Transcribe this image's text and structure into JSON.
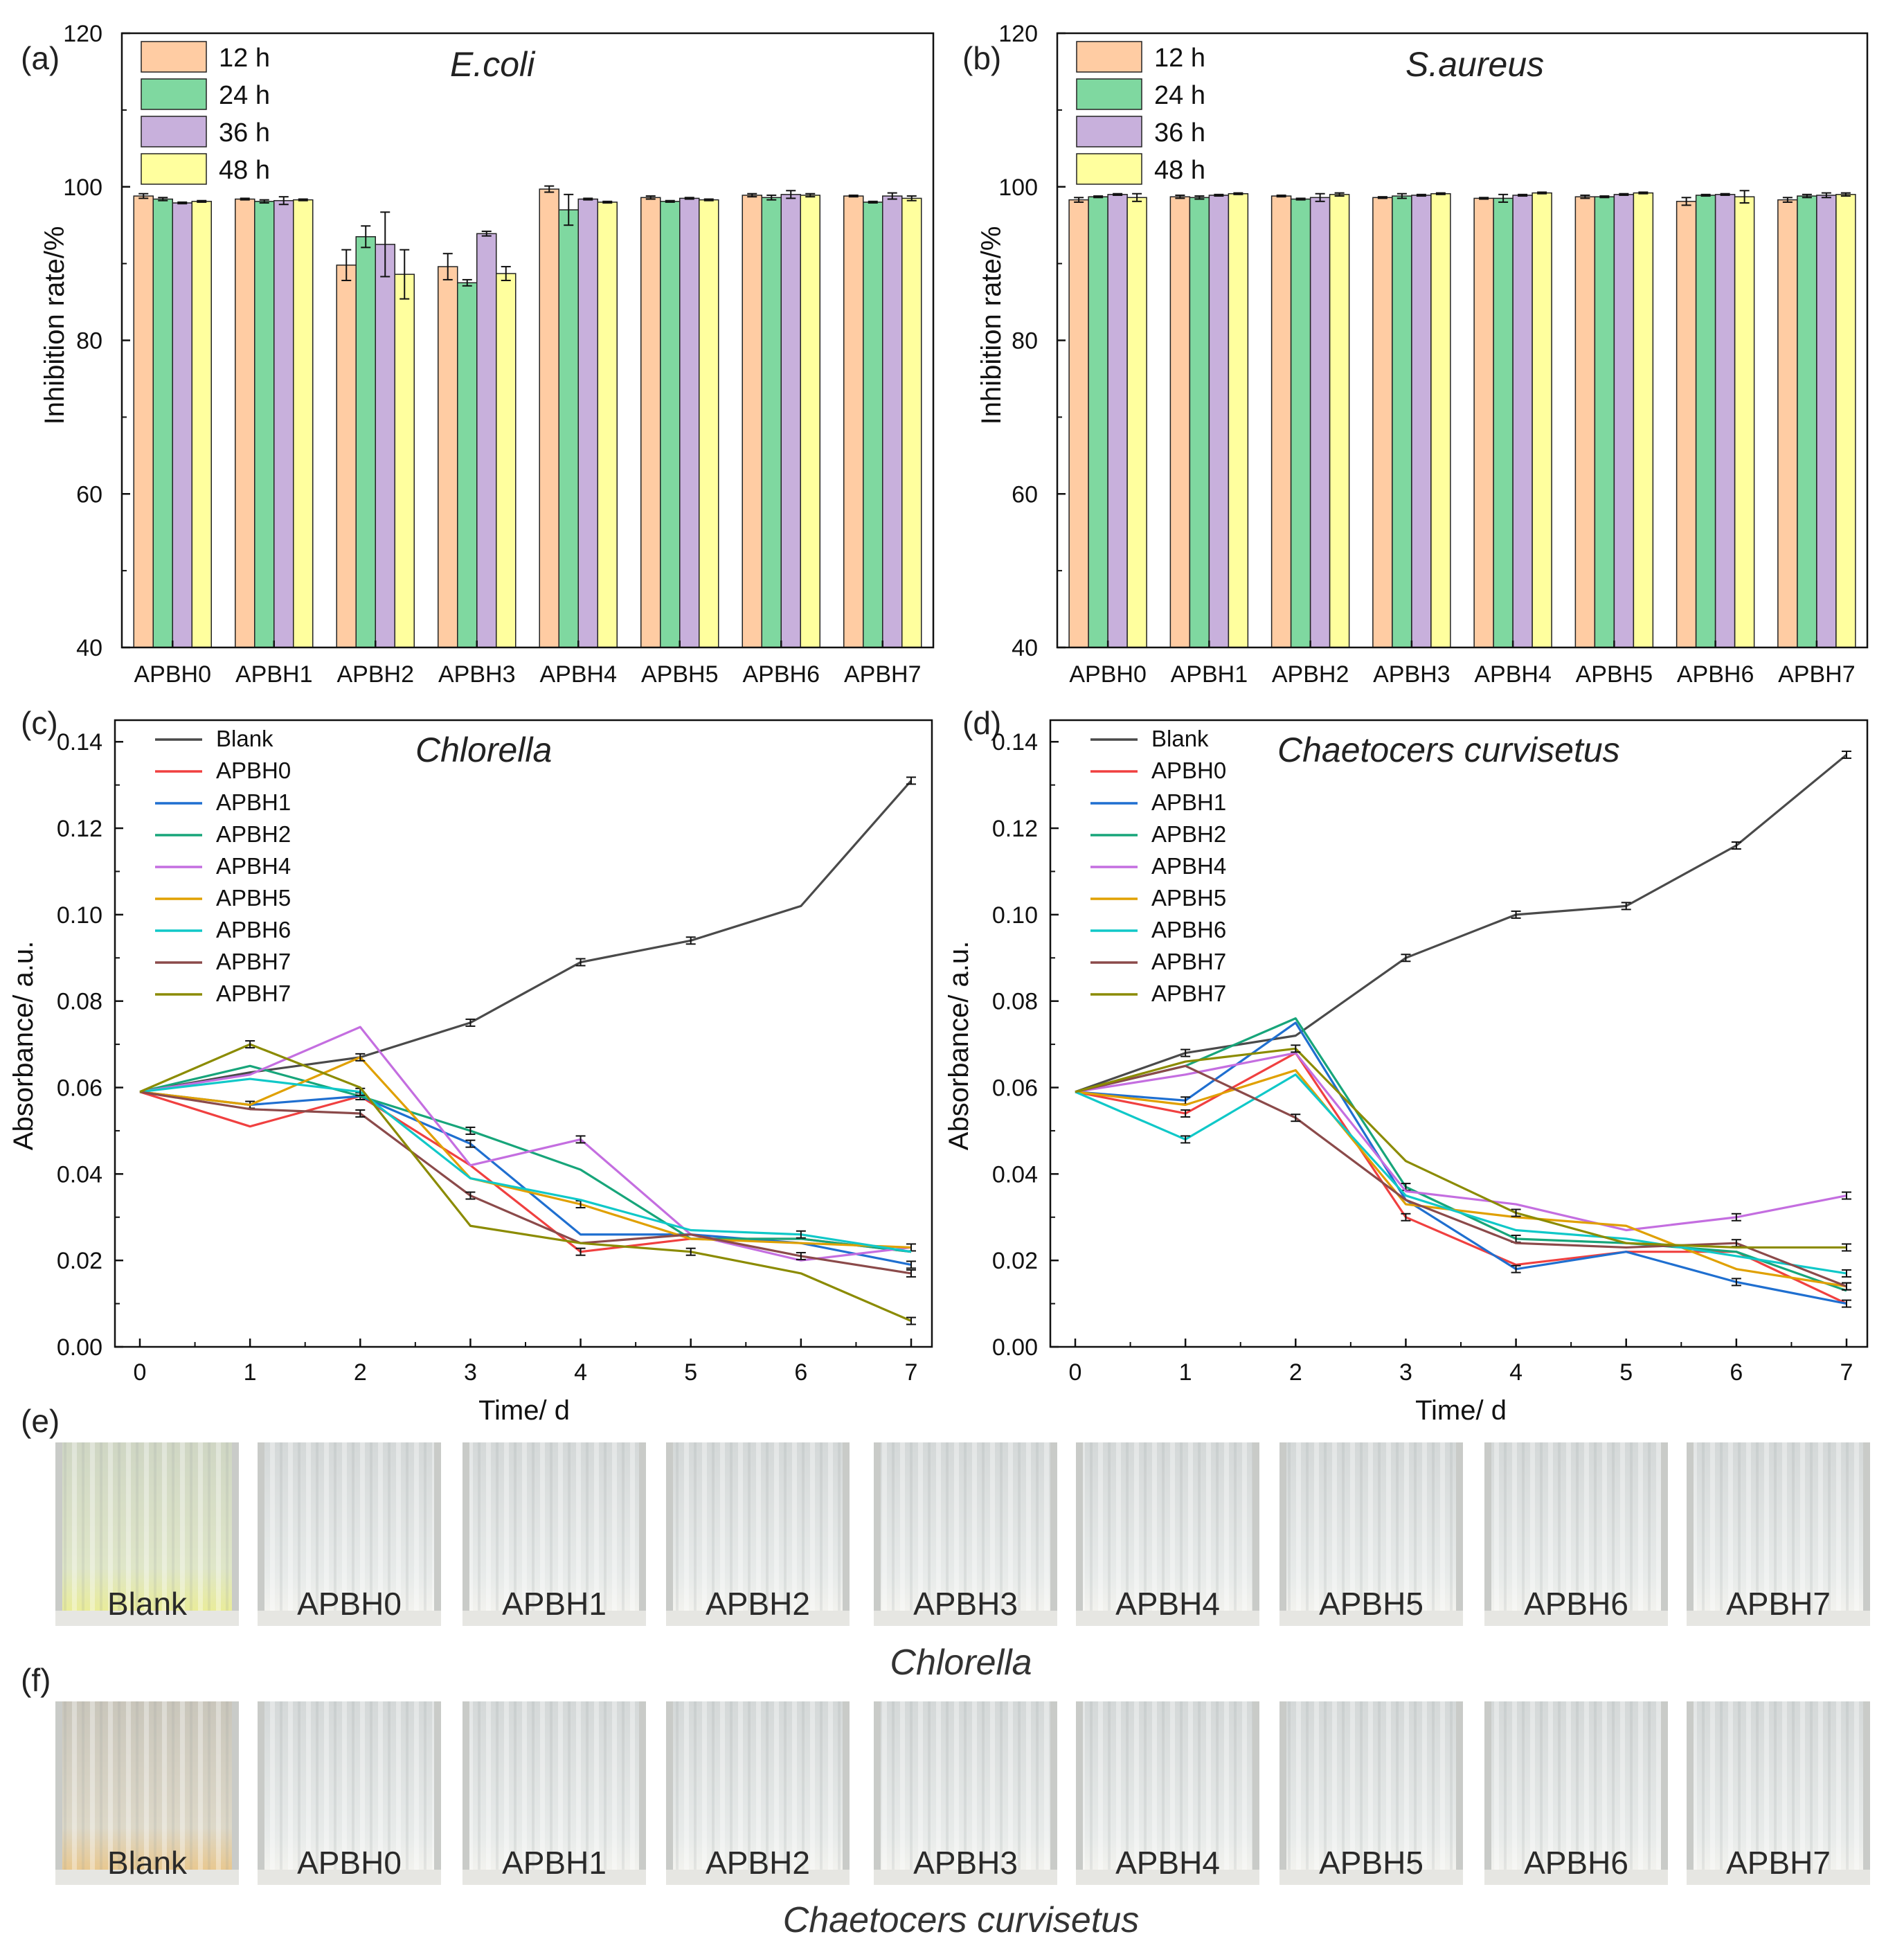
{
  "colors": {
    "h12": "#FFCCA3",
    "h24": "#7FD8A0",
    "h36": "#C8B0DC",
    "h48": "#FFFF9E",
    "Blank": "#4a4a4a",
    "APBH0": "#F04040",
    "APBH1": "#1F6FD0",
    "APBH2": "#17A57A",
    "APBH4": "#C46EE0",
    "APBH5": "#E0A000",
    "APBH6": "#10C8C8",
    "APBH7": "#8B4A4A",
    "APBH7b": "#8B8B00"
  },
  "chart_data": [
    {
      "panel": "(a)",
      "type": "bar",
      "title": "E.coli",
      "ylabel": "Inhibition rate/%",
      "xlabel": "",
      "ylim": [
        40,
        120
      ],
      "yticks": [
        "40",
        "60",
        "80",
        "100",
        "120"
      ],
      "categories": [
        "APBH0",
        "APBH1",
        "APBH2",
        "APBH3",
        "APBH4",
        "APBH5",
        "APBH6",
        "APBH7"
      ],
      "series": [
        {
          "name": "12 h",
          "color_key": "h12",
          "values": [
            98.8,
            98.4,
            89.8,
            89.6,
            99.7,
            98.6,
            98.9,
            98.8
          ],
          "errors": [
            0.3,
            0.1,
            2.0,
            1.7,
            0.4,
            0.2,
            0.2,
            0.1
          ]
        },
        {
          "name": "24 h",
          "color_key": "h24",
          "values": [
            98.4,
            98.1,
            93.5,
            87.5,
            97.0,
            98.1,
            98.6,
            98.0
          ],
          "errors": [
            0.2,
            0.2,
            1.4,
            0.4,
            2.0,
            0.1,
            0.3,
            0.1
          ]
        },
        {
          "name": "36 h",
          "color_key": "h36",
          "values": [
            97.9,
            98.2,
            92.5,
            93.9,
            98.4,
            98.5,
            99.0,
            98.8
          ],
          "errors": [
            0.1,
            0.5,
            4.2,
            0.3,
            0.1,
            0.1,
            0.5,
            0.4
          ]
        },
        {
          "name": "48 h",
          "color_key": "h48",
          "values": [
            98.1,
            98.3,
            88.6,
            88.7,
            98.0,
            98.3,
            98.9,
            98.5
          ],
          "errors": [
            0.1,
            0.1,
            3.2,
            0.9,
            0.1,
            0.1,
            0.2,
            0.3
          ]
        }
      ]
    },
    {
      "panel": "(b)",
      "type": "bar",
      "title": "S.aureus",
      "ylabel": "Inhibition rate/%",
      "xlabel": "",
      "ylim": [
        40,
        120
      ],
      "yticks": [
        "40",
        "60",
        "80",
        "100",
        "120"
      ],
      "categories": [
        "APBH0",
        "APBH1",
        "APBH2",
        "APBH3",
        "APBH4",
        "APBH5",
        "APBH6",
        "APBH7"
      ],
      "series": [
        {
          "name": "12 h",
          "color_key": "h12",
          "values": [
            98.3,
            98.7,
            98.8,
            98.6,
            98.5,
            98.7,
            98.1,
            98.3
          ],
          "errors": [
            0.3,
            0.2,
            0.1,
            0.1,
            0.1,
            0.2,
            0.5,
            0.3
          ]
        },
        {
          "name": "24 h",
          "color_key": "h24",
          "values": [
            98.7,
            98.6,
            98.4,
            98.8,
            98.5,
            98.7,
            98.9,
            98.8
          ],
          "errors": [
            0.1,
            0.2,
            0.1,
            0.3,
            0.5,
            0.1,
            0.1,
            0.2
          ]
        },
        {
          "name": "36 h",
          "color_key": "h36",
          "values": [
            99.0,
            98.9,
            98.6,
            98.9,
            98.9,
            99.0,
            99.0,
            98.9
          ],
          "errors": [
            0.1,
            0.1,
            0.5,
            0.1,
            0.1,
            0.1,
            0.1,
            0.3
          ]
        },
        {
          "name": "48 h",
          "color_key": "h48",
          "values": [
            98.6,
            99.1,
            99.0,
            99.1,
            99.2,
            99.2,
            98.7,
            99.0
          ],
          "errors": [
            0.5,
            0.1,
            0.2,
            0.1,
            0.1,
            0.1,
            0.8,
            0.2
          ]
        }
      ]
    },
    {
      "panel": "(c)",
      "type": "line",
      "title": "Chlorella",
      "xlabel": "Time/ d",
      "ylabel": "Absorbance/ a.u.",
      "xlim": [
        0,
        7
      ],
      "ylim": [
        0,
        0.145
      ],
      "xticks": [
        "0",
        "1",
        "2",
        "3",
        "4",
        "5",
        "6",
        "7"
      ],
      "yticks": [
        "0.00",
        "0.02",
        "0.04",
        "0.06",
        "0.08",
        "0.10",
        "0.12",
        "0.14"
      ],
      "x": [
        0,
        1,
        2,
        3,
        4,
        5,
        6,
        7
      ],
      "series": [
        {
          "name": "Blank",
          "color_key": "Blank",
          "values": [
            0.059,
            0.0635,
            0.067,
            0.075,
            0.089,
            0.094,
            0.102,
            0.131
          ],
          "err_points": [
            3,
            4,
            5,
            7
          ]
        },
        {
          "name": "APBH0",
          "color_key": "APBH0",
          "values": [
            0.059,
            0.051,
            0.058,
            0.042,
            0.022,
            0.025,
            0.025,
            0.022
          ],
          "err_points": [
            4
          ]
        },
        {
          "name": "APBH1",
          "color_key": "APBH1",
          "values": [
            0.059,
            0.056,
            0.058,
            0.047,
            0.026,
            0.026,
            0.024,
            0.019
          ],
          "err_points": [
            1,
            2,
            3,
            7
          ]
        },
        {
          "name": "APBH2",
          "color_key": "APBH2",
          "values": [
            0.059,
            0.065,
            0.058,
            0.05,
            0.041,
            0.025,
            0.025,
            0.022
          ],
          "err_points": [
            3
          ]
        },
        {
          "name": "APBH4",
          "color_key": "APBH4",
          "values": [
            0.059,
            0.063,
            0.074,
            0.042,
            0.048,
            0.026,
            0.02,
            0.023
          ],
          "err_points": [
            4
          ]
        },
        {
          "name": "APBH5",
          "color_key": "APBH5",
          "values": [
            0.059,
            0.056,
            0.067,
            0.039,
            0.033,
            0.025,
            0.024,
            0.023
          ],
          "err_points": [
            2,
            4,
            7
          ]
        },
        {
          "name": "APBH6",
          "color_key": "APBH6",
          "values": [
            0.059,
            0.062,
            0.059,
            0.039,
            0.034,
            0.027,
            0.026,
            0.022
          ],
          "err_points": [
            2,
            6
          ]
        },
        {
          "name": "APBH7",
          "color_key": "APBH7",
          "values": [
            0.059,
            0.055,
            0.054,
            0.035,
            0.024,
            0.026,
            0.021,
            0.017
          ],
          "err_points": [
            2,
            3,
            6,
            7
          ]
        },
        {
          "name": "APBH7",
          "color_key": "APBH7b",
          "values": [
            0.059,
            0.07,
            0.06,
            0.028,
            0.024,
            0.022,
            0.017,
            0.006
          ],
          "err_points": [
            1,
            5,
            7
          ]
        }
      ]
    },
    {
      "panel": "(d)",
      "type": "line",
      "title": "Chaetocers curvisetus",
      "xlabel": "Time/ d",
      "ylabel": "Absorbance/ a.u.",
      "xlim": [
        0,
        7
      ],
      "ylim": [
        0,
        0.145
      ],
      "xticks": [
        "0",
        "1",
        "2",
        "3",
        "4",
        "5",
        "6",
        "7"
      ],
      "yticks": [
        "0.00",
        "0.02",
        "0.04",
        "0.06",
        "0.08",
        "0.10",
        "0.12",
        "0.14"
      ],
      "x": [
        0,
        1,
        2,
        3,
        4,
        5,
        6,
        7
      ],
      "series": [
        {
          "name": "Blank",
          "color_key": "Blank",
          "values": [
            0.059,
            0.068,
            0.072,
            0.09,
            0.1,
            0.102,
            0.116,
            0.137
          ],
          "err_points": [
            1,
            3,
            4,
            5,
            6,
            7
          ]
        },
        {
          "name": "APBH0",
          "color_key": "APBH0",
          "values": [
            0.059,
            0.054,
            0.068,
            0.03,
            0.019,
            0.022,
            0.022,
            0.01
          ],
          "err_points": [
            1,
            3
          ]
        },
        {
          "name": "APBH1",
          "color_key": "APBH1",
          "values": [
            0.059,
            0.057,
            0.075,
            0.034,
            0.018,
            0.022,
            0.015,
            0.01
          ],
          "err_points": [
            1,
            4,
            6,
            7
          ]
        },
        {
          "name": "APBH2",
          "color_key": "APBH2",
          "values": [
            0.059,
            0.065,
            0.076,
            0.037,
            0.025,
            0.024,
            0.022,
            0.013
          ],
          "err_points": [
            3,
            4
          ]
        },
        {
          "name": "APBH4",
          "color_key": "APBH4",
          "values": [
            0.059,
            0.063,
            0.068,
            0.036,
            0.033,
            0.027,
            0.03,
            0.035
          ],
          "err_points": [
            6,
            7
          ]
        },
        {
          "name": "APBH5",
          "color_key": "APBH5",
          "values": [
            0.059,
            0.056,
            0.064,
            0.033,
            0.03,
            0.028,
            0.018,
            0.014
          ],
          "err_points": [
            7
          ]
        },
        {
          "name": "APBH6",
          "color_key": "APBH6",
          "values": [
            0.059,
            0.048,
            0.063,
            0.035,
            0.027,
            0.025,
            0.021,
            0.017
          ],
          "err_points": [
            1,
            7
          ]
        },
        {
          "name": "APBH7",
          "color_key": "APBH7",
          "values": [
            0.059,
            0.065,
            0.053,
            0.034,
            0.024,
            0.023,
            0.024,
            0.014
          ],
          "err_points": [
            2,
            6,
            7
          ]
        },
        {
          "name": "APBH7",
          "color_key": "APBH7b",
          "values": [
            0.059,
            0.066,
            0.069,
            0.043,
            0.031,
            0.024,
            0.023,
            0.023
          ],
          "err_points": [
            2,
            4,
            7
          ]
        }
      ]
    }
  ],
  "photos": {
    "e": {
      "panel": "(e)",
      "caption": "Chlorella",
      "labels": [
        "Blank",
        "APBH0",
        "APBH1",
        "APBH2",
        "APBH3",
        "APBH4",
        "APBH5",
        "APBH6",
        "APBH7"
      ]
    },
    "f": {
      "panel": "(f)",
      "caption": "Chaetocers curvisetus",
      "labels": [
        "Blank",
        "APBH0",
        "APBH1",
        "APBH2",
        "APBH3",
        "APBH4",
        "APBH5",
        "APBH6",
        "APBH7"
      ]
    }
  }
}
